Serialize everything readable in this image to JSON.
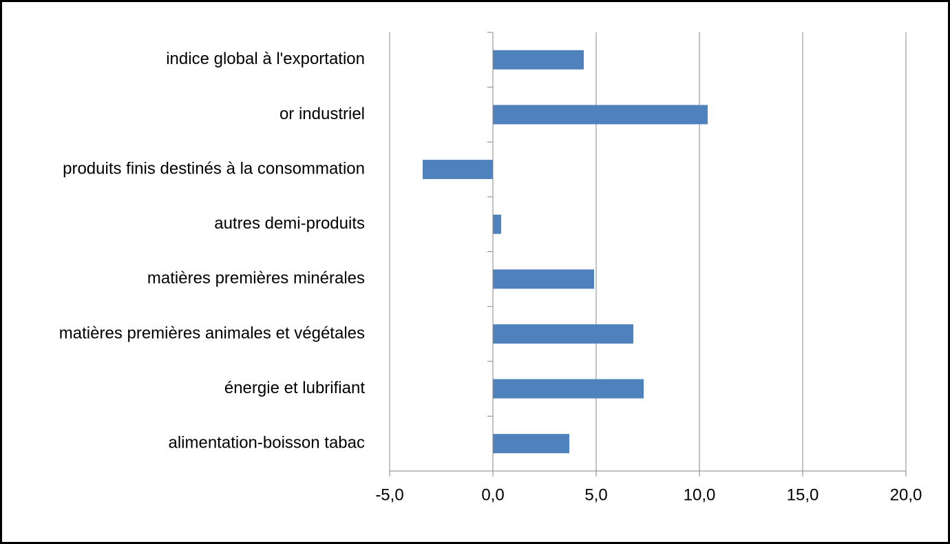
{
  "chart_data": {
    "type": "barh",
    "categories": [
      "indice global à l'exportation",
      "or industriel",
      "produits finis destinés à la consommation",
      "autres demi-produits",
      "matières premières minérales",
      "matières premières animales et végétales",
      "énergie et lubrifiant",
      "alimentation-boisson tabac"
    ],
    "values": [
      4.4,
      10.4,
      -3.4,
      0.4,
      4.9,
      6.8,
      7.3,
      3.7
    ],
    "color": "#4f81bd",
    "xlim": [
      -5,
      20
    ],
    "xticks": [
      {
        "value": -5,
        "label": "-5,0"
      },
      {
        "value": 0,
        "label": "0,0"
      },
      {
        "value": 5,
        "label": "5,0"
      },
      {
        "value": 10,
        "label": "10,0"
      },
      {
        "value": 15,
        "label": "15,0"
      },
      {
        "value": 20,
        "label": "20,0"
      }
    ],
    "grid": true
  }
}
